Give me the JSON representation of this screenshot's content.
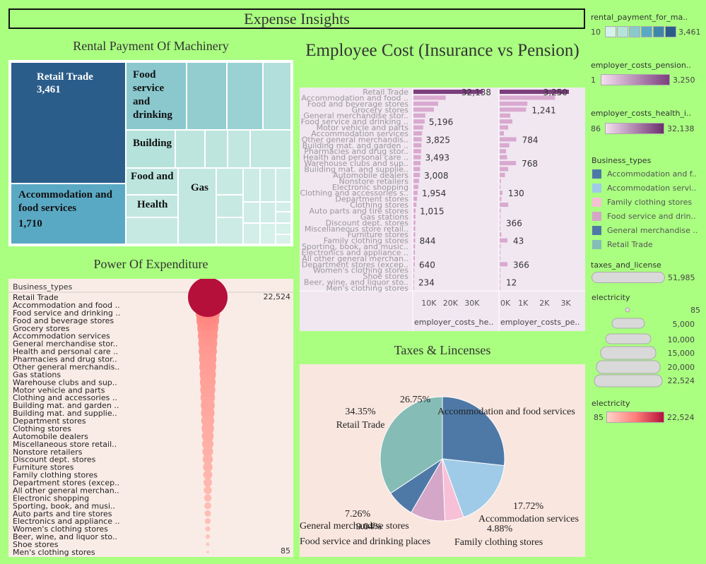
{
  "dashboard_title": "Expense Insights",
  "treemap": {
    "title": "Rental Payment Of Machinery",
    "labels": [
      {
        "name": "Retail Trade",
        "value": "3,461"
      },
      {
        "name": "Accommodation and food services",
        "value": "1,710"
      },
      {
        "name": "Food service and drinking",
        "value": ""
      },
      {
        "name": "Building",
        "value": ""
      },
      {
        "name": "Food and",
        "value": ""
      },
      {
        "name": "Health",
        "value": ""
      },
      {
        "name": "Gas",
        "value": ""
      }
    ]
  },
  "bar_panel": {
    "title": "Employee Cost (Insurance vs Pension)",
    "col1_header": "employer_costs_he..",
    "col2_header": "employer_costs_pe..",
    "col1_ticks": [
      "10K",
      "20K",
      "30K"
    ],
    "col2_ticks": [
      "0K",
      "1K",
      "2K",
      "3K"
    ]
  },
  "bubble_panel": {
    "title": "Power Of  Expenditure",
    "header": "Business_types",
    "max_label": "22,524",
    "min_label": "85"
  },
  "pie_panel": {
    "title": "Taxes &  Lincenses",
    "slices": [
      {
        "label": "Accommodation and food services",
        "pct": "26.75%",
        "value": 26.75,
        "color": "#4e79a7"
      },
      {
        "label": "Accommodation services",
        "pct": "17.72%",
        "value": 17.72,
        "color": "#a0cbe8"
      },
      {
        "label": "Family clothing stores",
        "pct": "4.88%",
        "value": 4.88,
        "color": "#f7c0d6"
      },
      {
        "label": "Food service and drinking places",
        "pct": "9.04%",
        "value": 9.04,
        "color": "#d4a6c8"
      },
      {
        "label": "General merchandise stores",
        "pct": "7.26%",
        "value": 7.26,
        "color": "#4e79a7"
      },
      {
        "label": "Retail Trade",
        "pct": "34.35%",
        "value": 34.35,
        "color": "#86bcb6"
      }
    ]
  },
  "legends": {
    "rental": {
      "title": "rental_payment_for_ma..",
      "min": "10",
      "max": "3,461"
    },
    "pension": {
      "title": "employer_costs_pension..",
      "min": "1",
      "max": "3,250"
    },
    "health": {
      "title": "employer_costs_health_i..",
      "min": "86",
      "max": "32,138"
    },
    "business_types": {
      "title": "Business_types",
      "items": [
        {
          "label": "Accommodation and f..",
          "color": "#4e79a7"
        },
        {
          "label": "Accommodation servi..",
          "color": "#a0cbe8"
        },
        {
          "label": "Family clothing stores",
          "color": "#f7c0d6"
        },
        {
          "label": "Food service and drin..",
          "color": "#d4a6c8"
        },
        {
          "label": "General merchandise ..",
          "color": "#4e79a7"
        },
        {
          "label": "Retail Trade",
          "color": "#86bcb6"
        }
      ]
    },
    "taxes": {
      "title": "taxes_and_license",
      "max": "51,985"
    },
    "electricity_size": {
      "title": "electricity",
      "values": [
        "85",
        "5,000",
        "10,000",
        "15,000",
        "20,000",
        "22,524"
      ]
    },
    "electricity_color": {
      "title": "electricity",
      "min": "85",
      "max": "22,524"
    }
  },
  "chart_data": [
    {
      "type": "bar",
      "title": "Employee Cost (Insurance vs Pension)",
      "categories": [
        "Retail Trade",
        "Accommodation and food ..",
        "Food and beverage stores",
        "Grocery stores",
        "General merchandise stor..",
        "Food service and drinking ..",
        "Motor vehicle and parts",
        "Accommodation services",
        "Other general merchandis..",
        "Building mat. and garden ..",
        "Pharmacies and drug stor..",
        "Health and personal care ..",
        "Warehouse clubs and sup..",
        "Building mat. and supplie..",
        "Automobile dealers",
        "Nonstore retailers",
        "Electronic shopping",
        "Clothing and accessories s..",
        "Department stores",
        "Clothing stores",
        "Auto parts and tire stores",
        "Gas stations",
        "Discount dept. stores",
        "Miscellaneous store retail..",
        "Furniture stores",
        "Family clothing stores",
        "Sporting, book, and music..",
        "Electronics and appliance ..",
        "All other general merchan..",
        "Department stores (excep..",
        "Women's clothing stores",
        "Shoe stores",
        "Beer, wine, and liquor sto..",
        "Men's clothing stores"
      ],
      "series": [
        {
          "name": "employer_costs_he..",
          "values": [
            32138,
            15000,
            11500,
            9500,
            5500,
            5196,
            4500,
            4000,
            3825,
            3700,
            3600,
            3493,
            3300,
            3100,
            3008,
            2600,
            2300,
            1954,
            1700,
            1400,
            1015,
            950,
            900,
            880,
            860,
            844,
            750,
            700,
            650,
            640,
            400,
            300,
            234,
            150
          ]
        },
        {
          "name": "employer_costs_pe..",
          "values": [
            3250,
            2600,
            1300,
            1241,
            500,
            600,
            400,
            200,
            784,
            450,
            300,
            350,
            768,
            400,
            250,
            60,
            40,
            130,
            80,
            400,
            50,
            20,
            30,
            20,
            80,
            366,
            43,
            30,
            20,
            366,
            12,
            10,
            12,
            5
          ]
        }
      ],
      "xlabel": "",
      "ylabel": ""
    },
    {
      "type": "scatter",
      "title": "Power Of  Expenditure",
      "categories": [
        "Retail Trade",
        "Accommodation and food ..",
        "Food service and drinking ..",
        "Food and beverage stores",
        "Grocery stores",
        "Accommodation services",
        "General merchandise stor..",
        "Health and personal care ..",
        "Pharmacies and drug stor..",
        "Other general merchandis..",
        "Gas stations",
        "Warehouse clubs and sup..",
        "Motor vehicle and parts",
        "Clothing and accessories ..",
        "Building mat. and garden ..",
        "Building mat. and supplie..",
        "Department stores",
        "Clothing stores",
        "Automobile dealers",
        "Miscellaneous store retail..",
        "Nonstore retailers",
        "Discount dept. stores",
        "Furniture stores",
        "Family clothing stores",
        "Department stores (excep..",
        "All other general merchan..",
        "Electronic shopping",
        "Sporting, book, and musi..",
        "Auto parts and tire stores",
        "Electronics and appliance ..",
        "Women's clothing stores",
        "Beer, wine, and liquor sto..",
        "Shoe stores",
        "Men's clothing stores"
      ],
      "values": [
        22524,
        7800,
        6400,
        5600,
        4800,
        4300,
        3900,
        3600,
        3300,
        3100,
        2900,
        2700,
        2500,
        2300,
        2150,
        2000,
        1850,
        1700,
        1550,
        1400,
        1250,
        1120,
        1000,
        900,
        800,
        700,
        600,
        520,
        450,
        380,
        300,
        230,
        150,
        85
      ],
      "xlabel": "",
      "ylabel": ""
    },
    {
      "type": "pie",
      "title": "Taxes &  Lincenses",
      "categories": [
        "Accommodation and food services",
        "Accommodation services",
        "Family clothing stores",
        "Food service and drinking places",
        "General merchandise stores",
        "Retail Trade"
      ],
      "values": [
        26.75,
        17.72,
        4.88,
        9.04,
        7.26,
        34.35
      ]
    }
  ]
}
